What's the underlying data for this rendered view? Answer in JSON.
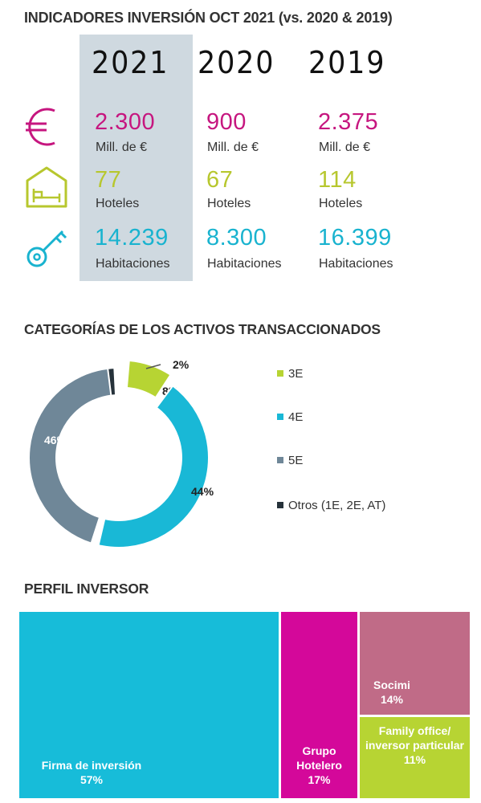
{
  "titles": {
    "main": "INDICADORES INVERSIÓN OCT 2021 (vs. 2020 & 2019)",
    "categories": "CATEGORÍAS DE LOS ACTIVOS TRANSACCIONADOS",
    "investor": "PERFIL INVERSOR"
  },
  "years": [
    "2021",
    "2020",
    "2019"
  ],
  "indicators": {
    "investment": {
      "icon": "euro-icon",
      "unit": "Mill. de €",
      "values": [
        "2.300",
        "900",
        "2.375"
      ]
    },
    "hotels": {
      "icon": "hotel-icon",
      "unit": "Hoteles",
      "values": [
        "77",
        "67",
        "114"
      ]
    },
    "rooms": {
      "icon": "key-icon",
      "unit": "Habitaciones",
      "values": [
        "14.239",
        "8.300",
        "16.399"
      ]
    }
  },
  "colors": {
    "magenta": "#c6167f",
    "lime": "#b7c72e",
    "cyan": "#19b3cf",
    "slate": "#6f8798",
    "dark": "#26323a",
    "rose": "#c06b87",
    "highlight": "#cfd9e0"
  },
  "chart_data": [
    {
      "type": "pie",
      "title": "CATEGORÍAS DE LOS ACTIVOS TRANSACCIONADOS",
      "categories": [
        "3E",
        "4E",
        "5E",
        "Otros (1E, 2E, AT)"
      ],
      "values": [
        8,
        44,
        46,
        2
      ],
      "labels": [
        "8%",
        "44%",
        "46%",
        "2%"
      ],
      "colors": [
        "#b7d433",
        "#19b8d6",
        "#6f8798",
        "#26323a"
      ],
      "legend": "right"
    },
    {
      "type": "treemap",
      "title": "PERFIL INVERSOR",
      "categories": [
        "Firma de inversión",
        "Grupo Hotelero",
        "Socimi",
        "Family office/ inversor particular"
      ],
      "values": [
        57,
        17,
        14,
        11
      ],
      "labels": [
        "57%",
        "17%",
        "14%",
        "11%"
      ],
      "colors": [
        "#17bcd9",
        "#d4089a",
        "#c06b87",
        "#b7d433"
      ]
    }
  ]
}
